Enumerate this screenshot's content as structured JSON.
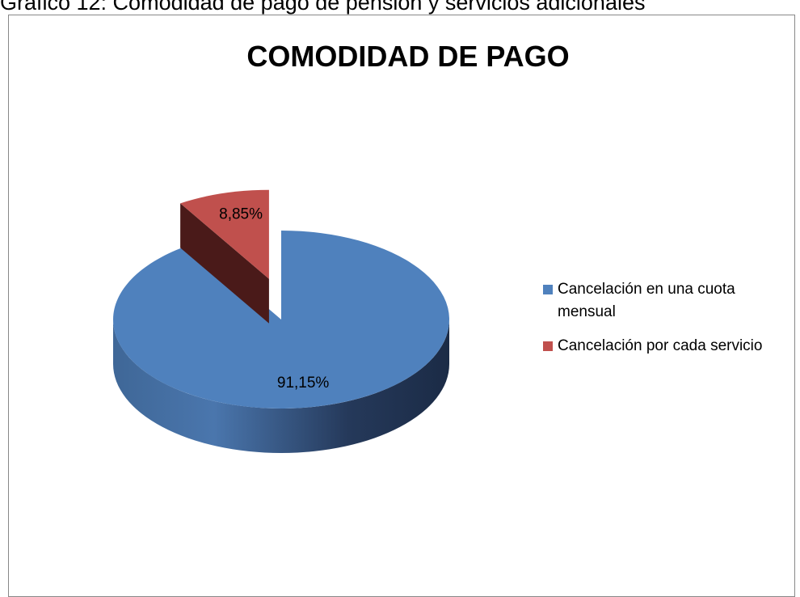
{
  "caption": "Gráfico 12: Comodidad de pago de pensión y servicios adicionales",
  "chart_data": {
    "type": "pie",
    "title": "COMODIDAD DE PAGO",
    "categories": [
      "Cancelación en una cuota mensual",
      "Cancelación por cada servicio"
    ],
    "values": [
      91.15,
      8.85
    ],
    "value_labels": [
      "91,15%",
      "8,85%"
    ],
    "colors": [
      "#4f81bd",
      "#c0504d"
    ]
  }
}
